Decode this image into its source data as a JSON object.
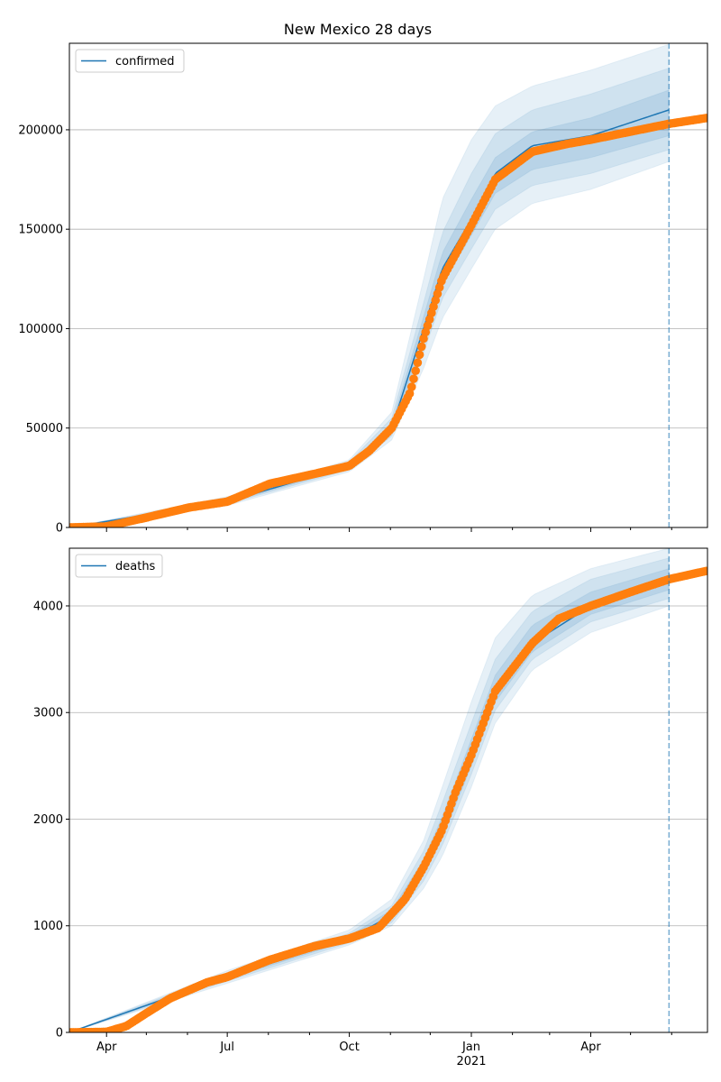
{
  "chart_data": [
    {
      "type": "line",
      "title": "New Mexico 28 days",
      "legend": {
        "label": "confirmed",
        "placement": "top-left"
      },
      "colors": {
        "forecast": "#1f77b4",
        "observed": "#ff7f0e",
        "grid": "#b0b0b0"
      },
      "xlabel": "",
      "ylabel": "",
      "x_units": "days since 2020-03-04",
      "xlim": [
        0,
        481
      ],
      "ylim": [
        0,
        243500
      ],
      "yticks": [
        0,
        50000,
        100000,
        150000,
        200000
      ],
      "ytick_labels": [
        "0",
        "50000",
        "100000",
        "150000",
        "200000"
      ],
      "grid": "horizontal",
      "forecast_start_day": 452,
      "observed": {
        "days": [
          0,
          28,
          58,
          90,
          119,
          151,
          185,
          211,
          226,
          243,
          257,
          267,
          281,
          303,
          321,
          349,
          376,
          393,
          452,
          481
        ],
        "values": [
          0,
          500,
          5000,
          10000,
          13000,
          22000,
          27000,
          31000,
          38500,
          50000,
          68000,
          95000,
          125000,
          152000,
          175000,
          189000,
          193000,
          195000,
          203000,
          206000
        ]
      },
      "forecast": {
        "days": [
          0,
          119,
          211,
          243,
          267,
          281,
          303,
          321,
          349,
          393,
          452
        ],
        "median": [
          0,
          13000,
          31000,
          50000,
          100000,
          130000,
          155000,
          178000,
          192000,
          197000,
          210000
        ],
        "bands": [
          {
            "lo": [
              0,
              11000,
              28000,
              44000,
              80000,
              105000,
              130000,
              150000,
              163000,
              170000,
              184000
            ],
            "hi": [
              0,
              15500,
              34000,
              58000,
              125000,
              165000,
              195000,
              212000,
              222000,
              230000,
              243000
            ]
          },
          {
            "lo": [
              0,
              11800,
              29000,
              46000,
              88000,
              115000,
              140000,
              160000,
              172000,
              178000,
              190000
            ],
            "hi": [
              0,
              14500,
              33000,
              55000,
              113000,
              148000,
              178000,
              198000,
              210000,
              218000,
              231000
            ]
          },
          {
            "lo": [
              0,
              12300,
              30000,
              48000,
              94000,
              122000,
              147000,
              168000,
              180000,
              186000,
              197000
            ],
            "hi": [
              0,
              14000,
              32000,
              52000,
              106000,
              138000,
              165000,
              186000,
              199000,
              206000,
              220000
            ]
          }
        ]
      }
    },
    {
      "type": "line",
      "title": "",
      "legend": {
        "label": "deaths",
        "placement": "top-left"
      },
      "colors": {
        "forecast": "#1f77b4",
        "observed": "#ff7f0e",
        "grid": "#b0b0b0"
      },
      "xlabel": "",
      "ylabel": "",
      "x_units": "days since 2020-03-04",
      "xlim": [
        0,
        481
      ],
      "ylim": [
        0,
        4541
      ],
      "yticks": [
        0,
        1000,
        2000,
        3000,
        4000
      ],
      "ytick_labels": [
        "0",
        "1000",
        "2000",
        "3000",
        "4000"
      ],
      "xticks": [
        28,
        119,
        211,
        303,
        393
      ],
      "xtick_labels": [
        "Apr",
        "Jul",
        "Oct",
        "Jan",
        "Apr"
      ],
      "xtick_sublabel": {
        "index": 3,
        "text": "2021"
      },
      "minor_xticks": [
        58,
        89,
        150,
        181,
        242,
        272,
        334,
        362,
        423,
        454
      ],
      "grid": "horizontal",
      "forecast_start_day": 452,
      "observed": {
        "days": [
          0,
          28,
          43,
          58,
          76,
          104,
          119,
          151,
          185,
          211,
          233,
          253,
          267,
          281,
          291,
          303,
          321,
          349,
          369,
          393,
          423,
          452,
          481
        ],
        "values": [
          0,
          5,
          60,
          180,
          320,
          470,
          520,
          680,
          810,
          880,
          980,
          1250,
          1550,
          1900,
          2250,
          2600,
          3200,
          3650,
          3880,
          4000,
          4130,
          4250,
          4330
        ]
      },
      "forecast": {
        "days": [
          0,
          119,
          211,
          243,
          267,
          281,
          303,
          321,
          349,
          393,
          452
        ],
        "median": [
          0,
          520,
          880,
          1100,
          1550,
          1900,
          2600,
          3200,
          3650,
          4000,
          4250
        ],
        "bands": [
          {
            "lo": [
              0,
              460,
              820,
              1000,
              1350,
              1650,
              2300,
              2900,
              3400,
              3750,
              4000
            ],
            "hi": [
              0,
              580,
              960,
              1250,
              1800,
              2300,
              3100,
              3700,
              4100,
              4350,
              4541
            ]
          },
          {
            "lo": [
              0,
              480,
              840,
              1030,
              1420,
              1750,
              2420,
              3020,
              3500,
              3850,
              4070
            ],
            "hi": [
              0,
              560,
              930,
              1190,
              1700,
              2150,
              2900,
              3500,
              3950,
              4250,
              4450
            ]
          },
          {
            "lo": [
              0,
              500,
              860,
              1060,
              1480,
              1820,
              2500,
              3100,
              3570,
              3920,
              4150
            ],
            "hi": [
              0,
              540,
              905,
              1150,
              1620,
              2020,
              2750,
              3350,
              3820,
              4130,
              4350
            ]
          }
        ]
      }
    }
  ]
}
